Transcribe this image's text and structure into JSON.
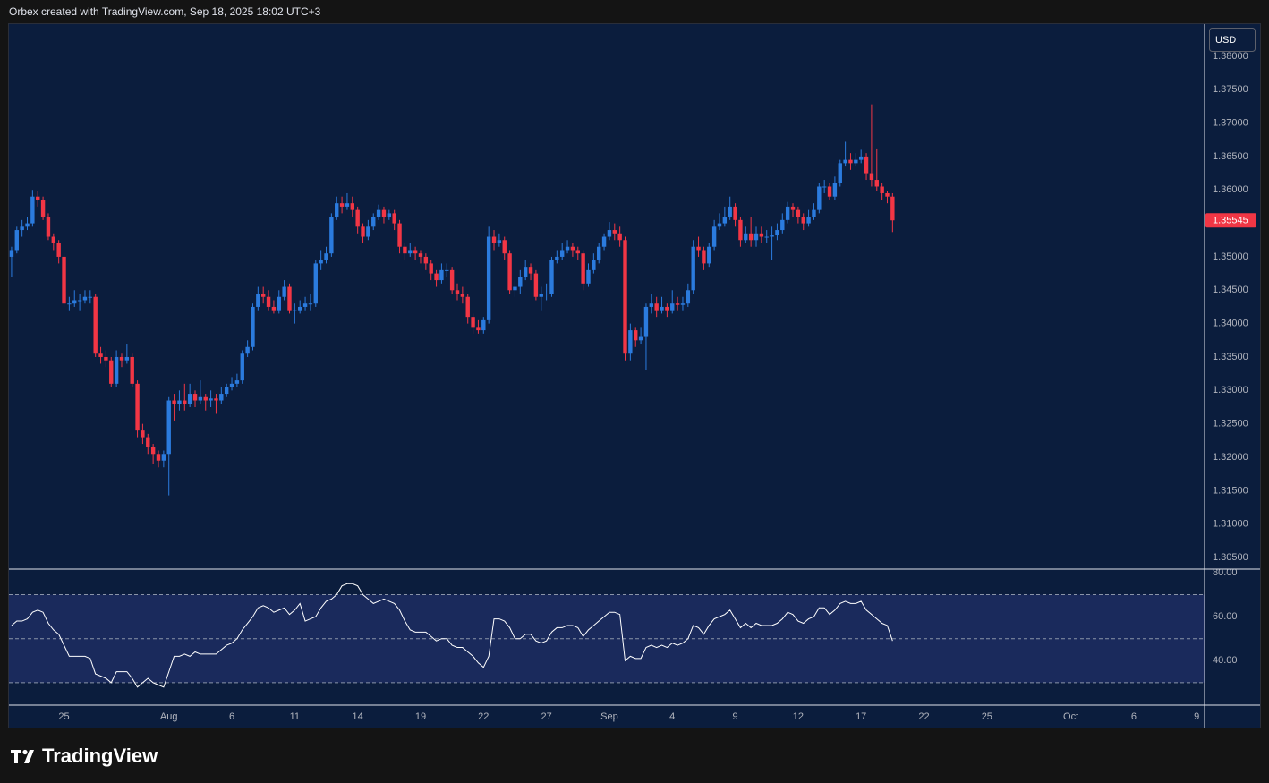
{
  "chart_data": {
    "type": "candlestick",
    "title": "Orbex created with TradingView.com, Sep 18, 2025 18:02 UTC+3",
    "currency": "USD",
    "watermark": "TradingView",
    "up_color": "#2b7bde",
    "down_color": "#f23645",
    "grid": false,
    "categories": [
      null,
      null,
      null,
      null,
      null,
      null,
      null,
      null,
      null,
      null,
      "25",
      null,
      null,
      null,
      null,
      null,
      null,
      null,
      null,
      null,
      null,
      null,
      null,
      null,
      null,
      null,
      null,
      null,
      null,
      null,
      "Aug",
      null,
      null,
      null,
      null,
      null,
      null,
      null,
      null,
      null,
      null,
      null,
      "6",
      null,
      null,
      null,
      null,
      null,
      null,
      null,
      null,
      null,
      null,
      null,
      "11",
      null,
      null,
      null,
      null,
      null,
      null,
      null,
      null,
      null,
      null,
      null,
      "14",
      null,
      null,
      null,
      null,
      null,
      null,
      null,
      null,
      null,
      null,
      null,
      "19",
      null,
      null,
      null,
      null,
      null,
      null,
      null,
      null,
      null,
      null,
      null,
      "22",
      null,
      null,
      null,
      null,
      null,
      null,
      null,
      null,
      null,
      null,
      null,
      "27",
      null,
      null,
      null,
      null,
      null,
      null,
      null,
      null,
      null,
      null,
      null,
      "Sep",
      null,
      null,
      null,
      null,
      null,
      null,
      null,
      null,
      null,
      null,
      null,
      "4",
      null,
      null,
      null,
      null,
      null,
      null,
      null,
      null,
      null,
      null,
      null,
      "9",
      null,
      null,
      null,
      null,
      null,
      null,
      null,
      null,
      null,
      null,
      null,
      "12",
      null,
      null,
      null,
      null,
      null,
      null,
      null,
      null,
      null,
      null,
      null,
      "17",
      null,
      null,
      null,
      null,
      null,
      null,
      null,
      null,
      null,
      null,
      null,
      "22",
      null,
      null,
      null,
      null,
      null,
      null,
      null,
      null,
      null,
      null,
      null,
      "25",
      null,
      null,
      null,
      null,
      null,
      null,
      null,
      null,
      null,
      null,
      null,
      null,
      null,
      null,
      null,
      "Oct",
      null,
      null,
      null,
      null,
      null,
      null,
      null,
      null,
      null,
      null,
      null,
      "6",
      null,
      null,
      null,
      null,
      null,
      null,
      null,
      null,
      null,
      null,
      null,
      "9",
      null
    ],
    "open": [
      1.35,
      1.351,
      1.354,
      1.3545,
      1.355,
      1.359,
      1.3585,
      1.356,
      1.353,
      1.352,
      1.35,
      1.343,
      1.343,
      1.3435,
      1.3435,
      1.344,
      1.344,
      1.3355,
      1.335,
      1.3345,
      1.331,
      1.335,
      1.3345,
      1.335,
      1.331,
      1.324,
      1.323,
      1.3215,
      1.3205,
      1.3195,
      1.3205,
      1.3285,
      1.328,
      1.3285,
      1.328,
      1.3295,
      1.3285,
      1.329,
      1.3285,
      1.3288,
      1.3285,
      1.3295,
      1.3305,
      1.331,
      1.3315,
      1.3355,
      1.3365,
      1.3425,
      1.3445,
      1.344,
      1.3425,
      1.342,
      1.344,
      1.3455,
      1.342,
      1.342,
      1.3425,
      1.343,
      1.343,
      1.349,
      1.3495,
      1.3505,
      1.356,
      1.358,
      1.3575,
      1.358,
      1.357,
      1.3545,
      1.353,
      1.3545,
      1.356,
      1.357,
      1.356,
      1.3565,
      1.355,
      1.3515,
      1.3505,
      1.351,
      1.3505,
      1.35,
      1.349,
      1.3475,
      1.3465,
      1.348,
      1.348,
      1.345,
      1.3445,
      1.344,
      1.341,
      1.3395,
      1.339,
      1.3405,
      1.353,
      1.352,
      1.3525,
      1.3505,
      1.345,
      1.3455,
      1.347,
      1.3485,
      1.3475,
      1.344,
      1.3445,
      1.3445,
      1.3495,
      1.35,
      1.351,
      1.3515,
      1.351,
      1.3505,
      1.346,
      1.348,
      1.3495,
      1.3515,
      1.353,
      1.354,
      1.3535,
      1.3525,
      1.3355,
      1.339,
      1.3375,
      1.338,
      1.3425,
      1.343,
      1.342,
      1.3425,
      1.342,
      1.343,
      1.3428,
      1.343,
      1.345,
      1.3515,
      1.351,
      1.349,
      1.3515,
      1.3545,
      1.355,
      1.356,
      1.3575,
      1.3555,
      1.3525,
      1.3535,
      1.3525,
      1.3535,
      1.353,
      1.353,
      1.3532,
      1.354,
      1.3555,
      1.3575,
      1.357,
      1.356,
      1.355,
      1.356,
      1.357,
      1.3605,
      1.3605,
      1.359,
      1.361,
      1.364,
      1.3645,
      1.364,
      1.3645,
      1.365,
      1.3625,
      1.3615,
      1.3605,
      1.3595,
      1.359,
      null,
      null,
      null,
      null,
      null,
      null,
      null,
      null,
      null,
      null,
      null,
      null,
      null,
      null,
      null,
      null,
      null,
      null,
      null,
      null,
      null,
      null,
      null,
      null,
      null,
      null,
      null,
      null,
      null,
      null,
      null,
      null,
      null,
      null,
      null,
      null,
      null,
      null,
      null,
      null,
      null,
      null,
      null,
      null,
      null,
      null,
      null,
      null,
      null,
      null,
      null,
      null,
      null,
      null,
      null,
      null,
      null,
      null,
      null
    ],
    "high": [
      1.3515,
      1.3545,
      1.3555,
      1.356,
      1.36,
      1.3598,
      1.359,
      1.3565,
      1.3535,
      1.3525,
      1.3505,
      1.344,
      1.345,
      1.3445,
      1.345,
      1.345,
      1.3445,
      1.3365,
      1.336,
      1.335,
      1.336,
      1.3355,
      1.337,
      1.3355,
      1.3315,
      1.325,
      1.3235,
      1.322,
      1.321,
      1.321,
      1.329,
      1.3295,
      1.33,
      1.331,
      1.331,
      1.33,
      1.3315,
      1.3295,
      1.33,
      1.3295,
      1.3305,
      1.331,
      1.332,
      1.3325,
      1.336,
      1.3375,
      1.343,
      1.3455,
      1.3455,
      1.345,
      1.3435,
      1.345,
      1.3465,
      1.346,
      1.343,
      1.3435,
      1.344,
      1.3445,
      1.3495,
      1.351,
      1.3515,
      1.3565,
      1.359,
      1.359,
      1.3595,
      1.359,
      1.3575,
      1.355,
      1.3555,
      1.3565,
      1.3578,
      1.3575,
      1.357,
      1.357,
      1.3555,
      1.352,
      1.352,
      1.3515,
      1.351,
      1.3505,
      1.3495,
      1.348,
      1.349,
      1.349,
      1.3485,
      1.346,
      1.3455,
      1.3445,
      1.3415,
      1.3405,
      1.341,
      1.3545,
      1.354,
      1.3535,
      1.353,
      1.351,
      1.3465,
      1.348,
      1.3495,
      1.349,
      1.348,
      1.3455,
      1.346,
      1.35,
      1.351,
      1.352,
      1.3525,
      1.352,
      1.3515,
      1.351,
      1.349,
      1.3505,
      1.352,
      1.3535,
      1.3552,
      1.355,
      1.3545,
      1.353,
      1.34,
      1.3395,
      1.3395,
      1.343,
      1.3445,
      1.344,
      1.344,
      1.343,
      1.345,
      1.344,
      1.344,
      1.346,
      1.3525,
      1.353,
      1.3515,
      1.352,
      1.3555,
      1.3565,
      1.3575,
      1.359,
      1.358,
      1.356,
      1.3545,
      1.356,
      1.3545,
      1.3545,
      1.354,
      1.3545,
      1.355,
      1.3565,
      1.3582,
      1.358,
      1.3575,
      1.3565,
      1.357,
      1.358,
      1.361,
      1.3615,
      1.361,
      1.362,
      1.3645,
      1.3672,
      1.3655,
      1.3655,
      1.366,
      1.3655,
      1.3728,
      1.3662,
      1.361,
      1.3598,
      1.3595,
      null,
      null,
      null,
      null,
      null,
      null,
      null,
      null,
      null,
      null,
      null,
      null,
      null,
      null,
      null,
      null,
      null,
      null,
      null,
      null,
      null,
      null,
      null,
      null,
      null,
      null,
      null,
      null,
      null,
      null,
      null,
      null,
      null,
      null,
      null,
      null,
      null,
      null,
      null,
      null,
      null,
      null,
      null,
      null,
      null,
      null,
      null,
      null,
      null,
      null,
      null,
      null,
      null,
      null,
      null,
      null,
      null,
      null,
      null
    ],
    "low": [
      1.347,
      1.3505,
      1.353,
      1.354,
      1.3545,
      1.3575,
      1.3555,
      1.3525,
      1.351,
      1.349,
      1.3425,
      1.342,
      1.3425,
      1.342,
      1.343,
      1.343,
      1.335,
      1.334,
      1.3335,
      1.3305,
      1.3305,
      1.3335,
      1.334,
      1.3305,
      1.323,
      1.322,
      1.3205,
      1.319,
      1.3185,
      1.3185,
      1.3143,
      1.3255,
      1.327,
      1.327,
      1.3275,
      1.3275,
      1.328,
      1.327,
      1.3275,
      1.3265,
      1.328,
      1.329,
      1.33,
      1.3305,
      1.331,
      1.335,
      1.336,
      1.342,
      1.343,
      1.342,
      1.3415,
      1.3415,
      1.3435,
      1.3415,
      1.34,
      1.3415,
      1.342,
      1.342,
      1.3425,
      1.348,
      1.349,
      1.35,
      1.3555,
      1.3565,
      1.357,
      1.356,
      1.3535,
      1.352,
      1.3525,
      1.354,
      1.3555,
      1.355,
      1.3555,
      1.354,
      1.3505,
      1.3495,
      1.35,
      1.3495,
      1.349,
      1.348,
      1.3465,
      1.3455,
      1.346,
      1.347,
      1.3445,
      1.3435,
      1.343,
      1.34,
      1.3385,
      1.3385,
      1.3385,
      1.34,
      1.351,
      1.3515,
      1.3495,
      1.3445,
      1.344,
      1.3445,
      1.3465,
      1.3465,
      1.3435,
      1.342,
      1.3435,
      1.344,
      1.349,
      1.3495,
      1.3505,
      1.35,
      1.3495,
      1.345,
      1.3455,
      1.3475,
      1.349,
      1.351,
      1.3525,
      1.3525,
      1.3515,
      1.3345,
      1.3345,
      1.3365,
      1.337,
      1.333,
      1.3415,
      1.341,
      1.3415,
      1.341,
      1.3415,
      1.342,
      1.342,
      1.3425,
      1.3445,
      1.35,
      1.348,
      1.3485,
      1.351,
      1.354,
      1.3545,
      1.3555,
      1.3545,
      1.3515,
      1.352,
      1.3515,
      1.3515,
      1.352,
      1.352,
      1.3495,
      1.3525,
      1.3535,
      1.355,
      1.356,
      1.355,
      1.354,
      1.3545,
      1.3555,
      1.3565,
      1.3595,
      1.3585,
      1.3585,
      1.3605,
      1.3635,
      1.363,
      1.3635,
      1.364,
      1.3615,
      1.3605,
      1.3598,
      1.3585,
      1.358,
      1.3537,
      null,
      null,
      null,
      null,
      null,
      null,
      null,
      null,
      null,
      null,
      null,
      null,
      null,
      null,
      null,
      null,
      null,
      null,
      null,
      null,
      null,
      null,
      null,
      null,
      null,
      null,
      null,
      null,
      null,
      null,
      null,
      null,
      null,
      null,
      null,
      null,
      null,
      null,
      null,
      null,
      null,
      null,
      null,
      null,
      null,
      null,
      null,
      null,
      null,
      null,
      null,
      null,
      null,
      null,
      null,
      null,
      null,
      null,
      null
    ],
    "close": [
      1.351,
      1.354,
      1.3545,
      1.355,
      1.359,
      1.3585,
      1.356,
      1.353,
      1.352,
      1.35,
      1.343,
      1.343,
      1.3435,
      1.3435,
      1.344,
      1.344,
      1.3355,
      1.335,
      1.3345,
      1.331,
      1.335,
      1.3345,
      1.335,
      1.331,
      1.324,
      1.323,
      1.3215,
      1.3205,
      1.3195,
      1.3205,
      1.3285,
      1.328,
      1.3285,
      1.328,
      1.3295,
      1.3285,
      1.329,
      1.3285,
      1.3288,
      1.3285,
      1.3295,
      1.3305,
      1.331,
      1.3315,
      1.3355,
      1.3365,
      1.3425,
      1.3445,
      1.344,
      1.3425,
      1.342,
      1.344,
      1.3455,
      1.342,
      1.342,
      1.3425,
      1.343,
      1.343,
      1.349,
      1.3495,
      1.3505,
      1.356,
      1.358,
      1.3575,
      1.358,
      1.357,
      1.3545,
      1.353,
      1.3545,
      1.356,
      1.357,
      1.356,
      1.3565,
      1.355,
      1.3515,
      1.3505,
      1.351,
      1.3505,
      1.35,
      1.349,
      1.3475,
      1.3465,
      1.348,
      1.348,
      1.345,
      1.3445,
      1.344,
      1.341,
      1.3395,
      1.339,
      1.3405,
      1.353,
      1.352,
      1.3525,
      1.3505,
      1.345,
      1.3455,
      1.347,
      1.3485,
      1.3475,
      1.344,
      1.3445,
      1.3445,
      1.3495,
      1.35,
      1.351,
      1.3515,
      1.351,
      1.3505,
      1.346,
      1.348,
      1.3495,
      1.3515,
      1.353,
      1.354,
      1.3535,
      1.3525,
      1.3355,
      1.339,
      1.3375,
      1.338,
      1.3425,
      1.343,
      1.342,
      1.3425,
      1.342,
      1.343,
      1.3428,
      1.343,
      1.345,
      1.3515,
      1.351,
      1.349,
      1.3515,
      1.3545,
      1.355,
      1.356,
      1.3575,
      1.3555,
      1.3525,
      1.3535,
      1.3525,
      1.3535,
      1.353,
      1.353,
      1.3532,
      1.354,
      1.3555,
      1.3575,
      1.357,
      1.356,
      1.355,
      1.356,
      1.357,
      1.3605,
      1.3605,
      1.359,
      1.361,
      1.364,
      1.3645,
      1.364,
      1.3645,
      1.365,
      1.3625,
      1.3615,
      1.3605,
      1.3595,
      1.359,
      1.35545,
      null,
      null,
      null,
      null,
      null,
      null,
      null,
      null,
      null,
      null,
      null,
      null,
      null,
      null,
      null,
      null,
      null,
      null,
      null,
      null,
      null,
      null,
      null,
      null,
      null,
      null,
      null,
      null,
      null,
      null,
      null,
      null,
      null,
      null,
      null,
      null,
      null,
      null,
      null,
      null,
      null,
      null,
      null,
      null,
      null,
      null,
      null,
      null,
      null,
      null,
      null,
      null,
      null,
      null,
      null,
      null,
      null,
      null,
      null
    ],
    "ylim": [
      1.3034,
      1.3848
    ],
    "yticks": [
      {
        "value": 1.305,
        "label": "1.30500"
      },
      {
        "value": 1.31,
        "label": "1.31000"
      },
      {
        "value": 1.315,
        "label": "1.31500"
      },
      {
        "value": 1.32,
        "label": "1.32000"
      },
      {
        "value": 1.325,
        "label": "1.32500"
      },
      {
        "value": 1.33,
        "label": "1.33000"
      },
      {
        "value": 1.335,
        "label": "1.33500"
      },
      {
        "value": 1.34,
        "label": "1.34000"
      },
      {
        "value": 1.345,
        "label": "1.34500"
      },
      {
        "value": 1.35,
        "label": "1.35000"
      },
      {
        "value": 1.355,
        "label": "1.35500"
      },
      {
        "value": 1.36,
        "label": "1.36000"
      },
      {
        "value": 1.365,
        "label": "1.36500"
      },
      {
        "value": 1.37,
        "label": "1.37000"
      },
      {
        "value": 1.375,
        "label": "1.37500"
      },
      {
        "value": 1.38,
        "label": "1.38000"
      }
    ],
    "indicator": {
      "type": "line",
      "color": "#ffffff",
      "band_color": "#1a2a5c",
      "levels": [
        70,
        50,
        30
      ],
      "ylim": [
        20.2,
        81.2
      ],
      "yticks": [
        {
          "value": 40,
          "label": "40.00"
        },
        {
          "value": 60,
          "label": "60.00"
        },
        {
          "value": 80,
          "label": "80.00"
        }
      ],
      "values": [
        56,
        58,
        58,
        59,
        62,
        63,
        62,
        57,
        54,
        52,
        47,
        42,
        42,
        42,
        42,
        41,
        34,
        33,
        32,
        30,
        35,
        35,
        35,
        32,
        28,
        30,
        32,
        30,
        29,
        28,
        35,
        42,
        42,
        43,
        42,
        44,
        43,
        43,
        43,
        43,
        45,
        47,
        48,
        50,
        54,
        57,
        60,
        64,
        65,
        64,
        62,
        63,
        64,
        61,
        63,
        66,
        58,
        59,
        60,
        64,
        67,
        68,
        70,
        74,
        75,
        75,
        74,
        70,
        68,
        66,
        67,
        68,
        67,
        66,
        63,
        58,
        54,
        53,
        53,
        53,
        51,
        49,
        50,
        50,
        47,
        46,
        46,
        44,
        42,
        39,
        37,
        42,
        59,
        59,
        58,
        55,
        50,
        50,
        52,
        52,
        49,
        48,
        49,
        53,
        55,
        55,
        56,
        56,
        55,
        51,
        54,
        56,
        58,
        60,
        62,
        62,
        61,
        40,
        42,
        41,
        41,
        46,
        47,
        46,
        47,
        46,
        48,
        47,
        48,
        50,
        56,
        55,
        52,
        56,
        59,
        60,
        61,
        63,
        59,
        55,
        57,
        55,
        57,
        56,
        56,
        56,
        57,
        59,
        62,
        61,
        58,
        57,
        59,
        60,
        64,
        64,
        61,
        63,
        66,
        67,
        66,
        66,
        67,
        63,
        61,
        59,
        57,
        56,
        49,
        null,
        null,
        null,
        null,
        null,
        null,
        null,
        null,
        null,
        null,
        null,
        null,
        null,
        null,
        null,
        null,
        null,
        null,
        null,
        null,
        null,
        null,
        null,
        null,
        null,
        null,
        null,
        null,
        null,
        null,
        null,
        null,
        null,
        null,
        null,
        null,
        null,
        null,
        null,
        null,
        null,
        null,
        null,
        null,
        null,
        null,
        null,
        null,
        null,
        null,
        null,
        null,
        null,
        null,
        null,
        null,
        null,
        null,
        null
      ]
    }
  }
}
